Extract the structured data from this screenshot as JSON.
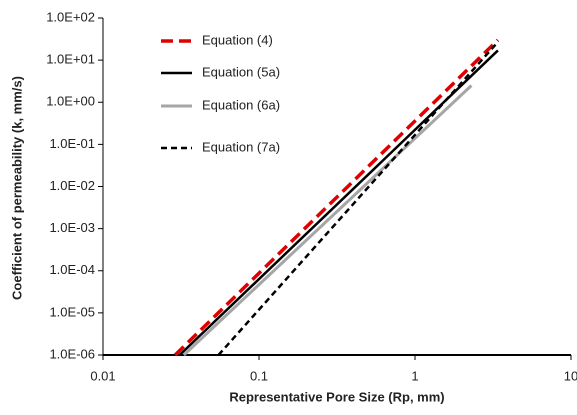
{
  "chart_data": {
    "type": "line",
    "xlabel": "Representative Pore Size (Rp, mm)",
    "ylabel": "Coefficient of permeability (k, mm/s)",
    "xscale": "log",
    "yscale": "log",
    "xlim": [
      0.01,
      10
    ],
    "ylim": [
      1e-06,
      100
    ],
    "xticks": [
      0.01,
      0.1,
      1,
      10
    ],
    "yticks": [
      {
        "value": 1e-06,
        "label": "1.0E-06"
      },
      {
        "value": 1e-05,
        "label": "1.0E-05"
      },
      {
        "value": 0.0001,
        "label": "1.0E-04"
      },
      {
        "value": 0.001,
        "label": "1.0E-03"
      },
      {
        "value": 0.01,
        "label": "1.0E-02"
      },
      {
        "value": 0.1,
        "label": "1.0E-01"
      },
      {
        "value": 1,
        "label": "1.0E+00"
      },
      {
        "value": 10,
        "label": "1.0E+01"
      },
      {
        "value": 100,
        "label": "1.0E+02"
      }
    ],
    "legend": "top-left",
    "series": [
      {
        "name": "Equation (4)",
        "color": "#e00000",
        "dash": "long",
        "width": 3.5,
        "x": [
          0.029,
          3.4
        ],
        "values": [
          1e-06,
          30
        ]
      },
      {
        "name": "Equation (5a)",
        "color": "#000000",
        "dash": "none",
        "width": 2.5,
        "x": [
          0.031,
          3.4
        ],
        "values": [
          1e-06,
          17
        ]
      },
      {
        "name": "Equation (6a)",
        "color": "#a6a6a6",
        "dash": "none",
        "width": 3,
        "x": [
          0.033,
          2.3
        ],
        "values": [
          1e-06,
          2.5
        ]
      },
      {
        "name": "Equation (7a)",
        "color": "#000000",
        "dash": "short",
        "width": 2.5,
        "x": [
          0.055,
          3.4
        ],
        "values": [
          1e-06,
          27
        ]
      }
    ]
  }
}
